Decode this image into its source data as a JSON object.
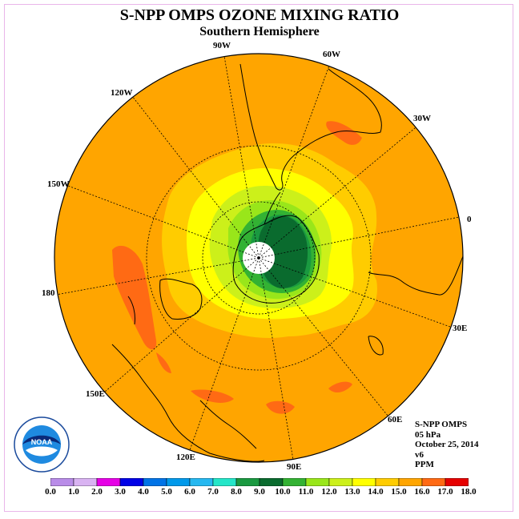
{
  "title": "S-NPP OMPS OZONE MIXING RATIO",
  "subtitle": "Southern Hemisphere",
  "longitude_labels": [
    "90W",
    "60W",
    "30W",
    "0",
    "30E",
    "60E",
    "90E",
    "120E",
    "150E",
    "180",
    "150W",
    "120W"
  ],
  "info": {
    "instrument": "S-NPP OMPS",
    "level": "05 hPa",
    "date": "October 25, 2014",
    "version": "v6",
    "units": "PPM"
  },
  "logo": {
    "name": "NOAA",
    "ring_text": "NATIONAL OCEANIC AND ATMOSPHERIC ADMINISTRATION · U.S. DEPARTMENT OF COMMERCE"
  },
  "colorbar": {
    "ticks": [
      "0.0",
      "1.0",
      "2.0",
      "3.0",
      "4.0",
      "5.0",
      "6.0",
      "7.0",
      "8.0",
      "9.0",
      "10.0",
      "11.0",
      "12.0",
      "13.0",
      "14.0",
      "15.0",
      "16.0",
      "17.0",
      "18.0"
    ],
    "colors": [
      "#b98ce8",
      "#d9b3f2",
      "#e600e6",
      "#0000e6",
      "#0073e6",
      "#0099ea",
      "#26b8f0",
      "#24e6c8",
      "#1a9940",
      "#0a6b2e",
      "#33b233",
      "#99e61a",
      "#ccf01a",
      "#ffff00",
      "#ffcc00",
      "#ffa500",
      "#ff6a14",
      "#e60000",
      "#8c5a3c"
    ]
  },
  "map_colors": {
    "ocean": "#ffa500",
    "low_10": "#0a6b2e",
    "c9": "#1a9940",
    "c11": "#33b233",
    "c12": "#99e61a",
    "c12b": "#ccf01a",
    "c13": "#ffff00",
    "c14": "#ffcc00",
    "c16": "#ff6a14",
    "pole": "#ffffff"
  }
}
